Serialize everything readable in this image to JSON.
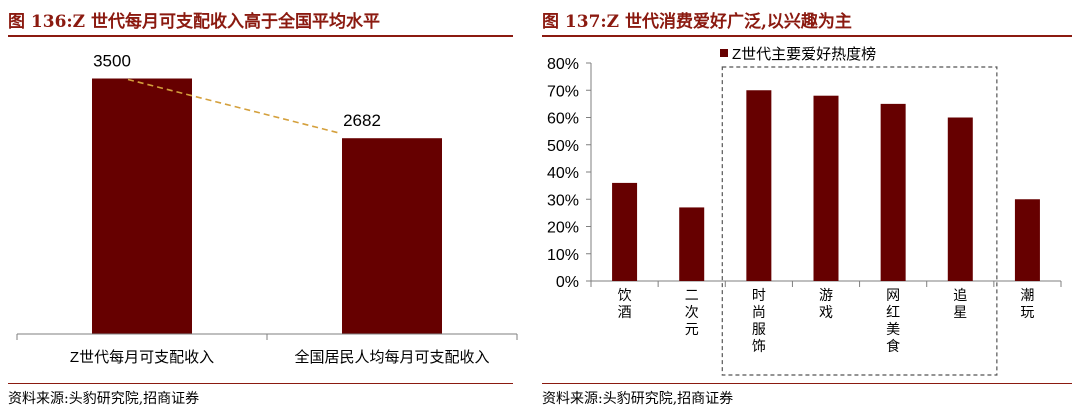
{
  "left": {
    "figure_title": "图 136:Z 世代每月可支配收入高于全国平均水平",
    "source": "资料来源:头豹研究院,招商证券"
  },
  "right": {
    "figure_title": "图 137:Z 世代消费爱好广泛,以兴趣为主",
    "source": "资料来源:头豹研究院,招商证券"
  },
  "chart_data": [
    {
      "type": "bar",
      "categories": [
        "Z世代每月可支配收入",
        "全国居民人均每月可支配收入"
      ],
      "values": [
        3500,
        2682
      ],
      "data_labels": [
        "3500",
        "2682"
      ],
      "ylim": [
        0,
        4000
      ],
      "grid": false,
      "trend_line": true,
      "bar_color": "#660000",
      "trend_color": "#d4a03c"
    },
    {
      "type": "bar",
      "categories": [
        "饮酒",
        "二次元",
        "时尚服饰",
        "游戏",
        "网红美食",
        "追星",
        "潮玩"
      ],
      "values": [
        36,
        27,
        70,
        68,
        65,
        60,
        30
      ],
      "y_ticks": [
        "0%",
        "10%",
        "20%",
        "30%",
        "40%",
        "50%",
        "60%",
        "70%",
        "80%"
      ],
      "ylim": [
        0,
        80
      ],
      "unit": "%",
      "grid": false,
      "legend": {
        "position": "top",
        "entries": [
          "Z世代主要爱好热度榜"
        ]
      },
      "highlight_box": [
        "时尚服饰",
        "追星"
      ],
      "bar_color": "#660000"
    }
  ]
}
